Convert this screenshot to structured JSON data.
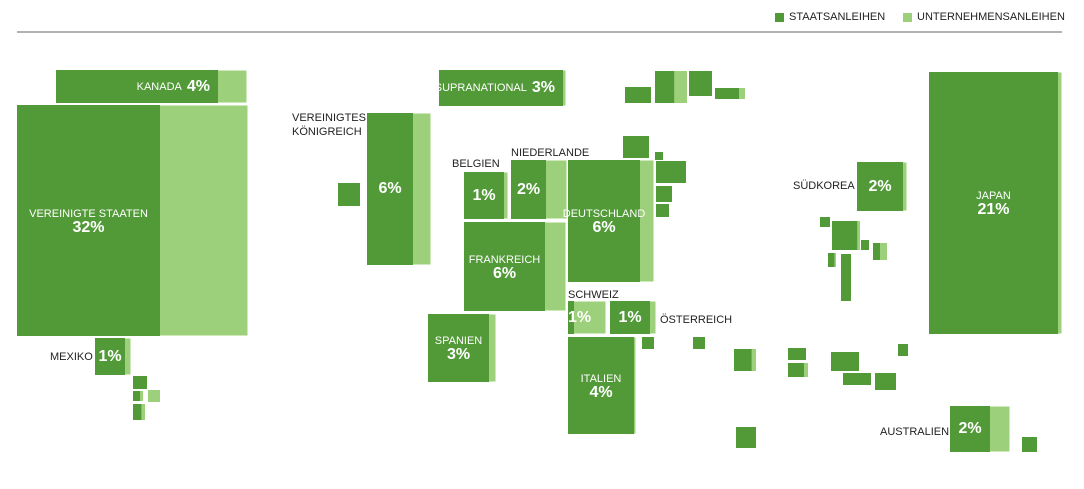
{
  "chart_data": {
    "type": "cartogram",
    "series": [
      {
        "name": "STAATSANLEIHEN",
        "color": "#529a38"
      },
      {
        "name": "UNTERNEHMENSANLEIHEN",
        "color": "#9dd07a"
      }
    ],
    "categories": [
      "VEREINIGTE STAATEN",
      "KANADA",
      "MEXIKO",
      "SUPRANATIONAL",
      "VEREINIGTES KÖNIGREICH",
      "BELGIEN",
      "NIEDERLANDE",
      "DEUTSCHLAND",
      "FRANKREICH",
      "SPANIEN",
      "SCHWEIZ",
      "ÖSTERREICH",
      "ITALIEN",
      "JAPAN",
      "SÜDKOREA",
      "AUSTRALIEN"
    ],
    "values": [
      32,
      4,
      1,
      3,
      6,
      1,
      2,
      6,
      6,
      3,
      1,
      1,
      4,
      21,
      2,
      2
    ],
    "value_labels": [
      "32%",
      "4%",
      "1%",
      "3%",
      "6%",
      "1%",
      "2%",
      "6%",
      "6%",
      "3%",
      "1%",
      "1%",
      "4%",
      "21%",
      "2%",
      "2%"
    ]
  }
}
